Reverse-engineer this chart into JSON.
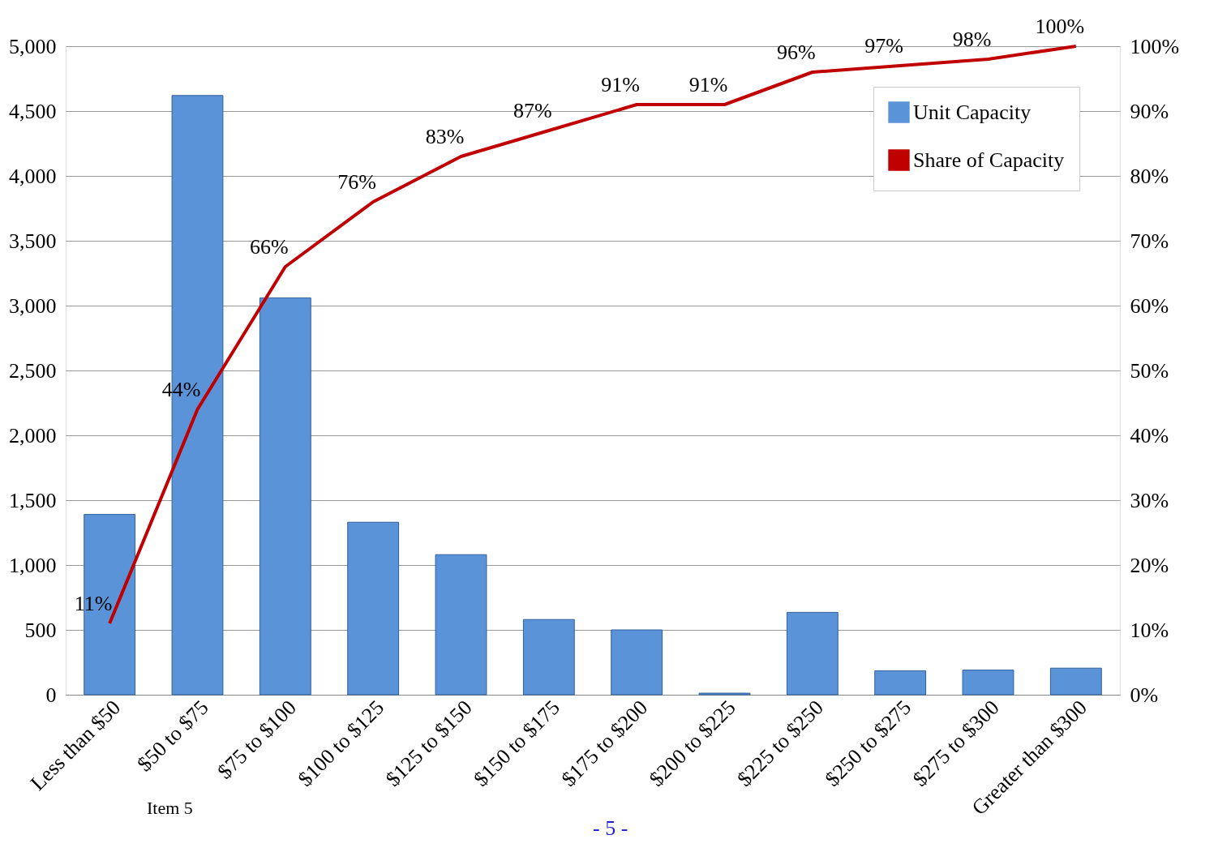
{
  "chart_data": {
    "type": "bar",
    "categories": [
      "Less than $50",
      "$50 to $75",
      "$75 to $100",
      "$100 to $125",
      "$125 to $150",
      "$150 to $175",
      "$175 to $200",
      "$200 to $225",
      "$225 to $250",
      "$250 to $275",
      "$275 to $300",
      "Greater than $300"
    ],
    "series": [
      {
        "name": "Unit Capacity",
        "color": "#5b93d9",
        "values": [
          1390,
          4620,
          3060,
          1330,
          1080,
          580,
          500,
          12,
          635,
          185,
          190,
          205
        ]
      },
      {
        "name": "Share of Capacity",
        "type": "line",
        "axis": "y2",
        "color": "#c00000",
        "values": [
          11,
          44,
          66,
          76,
          83,
          87,
          91,
          91,
          96,
          97,
          98,
          100
        ],
        "value_labels": [
          "11%",
          "44%",
          "66%",
          "76%",
          "83%",
          "87%",
          "91%",
          "91%",
          "96%",
          "97%",
          "98%",
          "100%"
        ]
      }
    ],
    "ylim": [
      0,
      5000
    ],
    "yticks": [
      0,
      {
        "value": 500,
        "label": "500"
      },
      {
        "value": 1000,
        "label": "1,000"
      },
      {
        "value": 1500,
        "label": "1,500"
      },
      {
        "value": 2000,
        "label": "2,000"
      },
      {
        "value": 2500,
        "label": "2,500"
      },
      {
        "value": 3000,
        "label": "3,000"
      },
      {
        "value": 3500,
        "label": "3,500"
      },
      {
        "value": 4000,
        "label": "4,000"
      },
      {
        "value": 4500,
        "label": "4,500"
      },
      {
        "value": 5000,
        "label": "5,000"
      }
    ],
    "y2lim": [
      0,
      100
    ],
    "y2ticks": [
      {
        "value": 0,
        "label": "0%"
      },
      {
        "value": 10,
        "label": "10%"
      },
      {
        "value": 20,
        "label": "20%"
      },
      {
        "value": 30,
        "label": "30%"
      },
      {
        "value": 40,
        "label": "40%"
      },
      {
        "value": 50,
        "label": "50%"
      },
      {
        "value": 60,
        "label": "60%"
      },
      {
        "value": 70,
        "label": "70%"
      },
      {
        "value": 80,
        "label": "80%"
      },
      {
        "value": 90,
        "label": "90%"
      },
      {
        "value": 100,
        "label": "100%"
      }
    ],
    "grid": "y",
    "legend": "top right",
    "annotations": [
      "Item 5",
      "- 5 -"
    ]
  }
}
